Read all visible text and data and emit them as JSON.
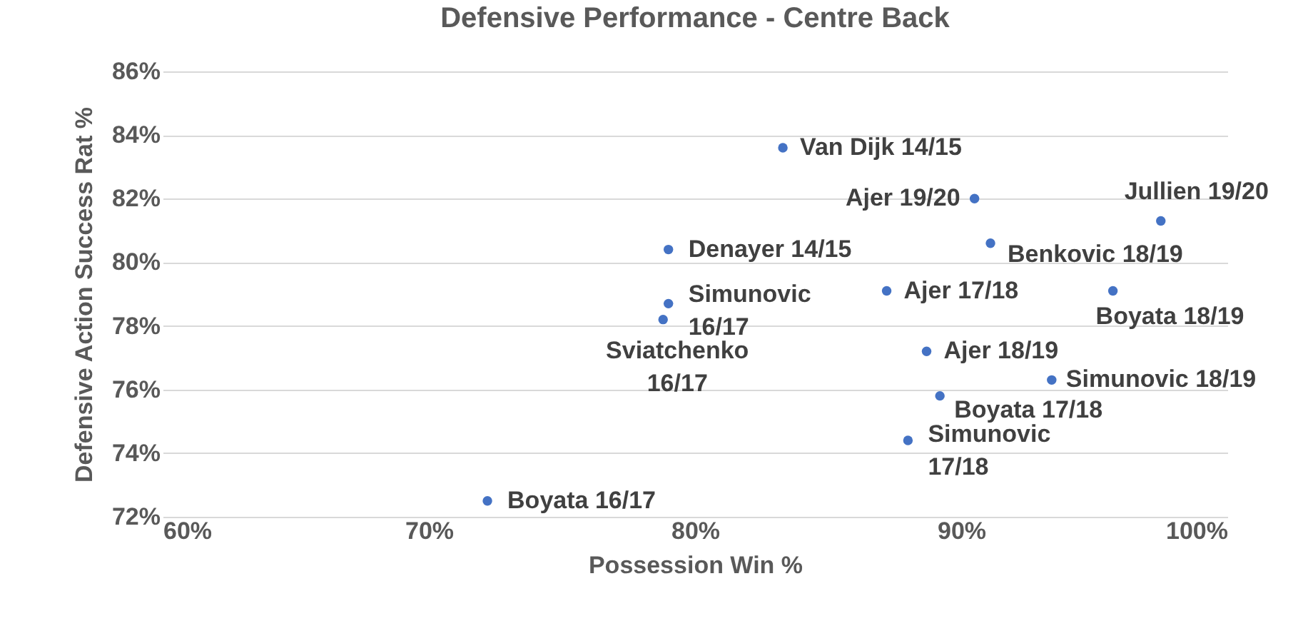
{
  "chart_data": {
    "type": "scatter",
    "title": "Defensive Performance - Centre Back",
    "xlabel": "Possession Win %",
    "ylabel": "Defensive Action Success Rat %",
    "x": [
      83.3,
      90.5,
      97.5,
      91.1,
      79.0,
      95.7,
      87.2,
      79.0,
      78.8,
      88.7,
      89.2,
      93.4,
      88.0,
      72.2
    ],
    "values": [
      83.6,
      82.0,
      81.3,
      80.6,
      80.4,
      79.1,
      79.1,
      78.7,
      78.2,
      77.2,
      75.8,
      76.3,
      74.4,
      72.5
    ],
    "value_labels": [
      "Van Dijk 14/15",
      "Ajer 19/20",
      "Jullien 19/20",
      "Benkovic 18/19",
      "Denayer 14/15",
      "Boyata 18/19",
      "Ajer 17/18",
      "Simunovic 16/17",
      "Sviatchenko 16/17",
      "Ajer 18/19",
      "Boyata 17/18",
      "Simunovic 18/19",
      "Simunovic 17/18",
      "Boyata 16/17"
    ],
    "color": "#4472c4",
    "marker": "circle",
    "grid": "y",
    "xlim": [
      60,
      100
    ],
    "xticks": [
      {
        "value": 60,
        "label": "60%"
      },
      {
        "value": 70,
        "label": "70%"
      },
      {
        "value": 80,
        "label": "80%"
      },
      {
        "value": 90,
        "label": "90%"
      },
      {
        "value": 100,
        "label": "100%"
      }
    ],
    "ylim": [
      72,
      86
    ],
    "yticks": [
      {
        "value": 72,
        "label": "72%"
      },
      {
        "value": 74,
        "label": "74%"
      },
      {
        "value": 76,
        "label": "76%"
      },
      {
        "value": 78,
        "label": "78%"
      },
      {
        "value": 80,
        "label": "80%"
      },
      {
        "value": 82,
        "label": "82%"
      },
      {
        "value": 84,
        "label": "84%"
      },
      {
        "value": 86,
        "label": "86%"
      }
    ]
  }
}
